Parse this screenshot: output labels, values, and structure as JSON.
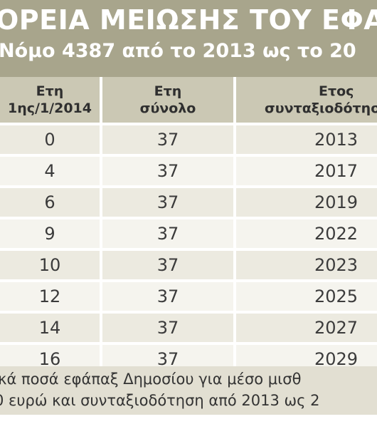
{
  "header": {
    "title": "ΟΡΕΙΑ ΜΕΙΩΣΗΣ ΤΟΥ ΕΦΑ",
    "subtitle": "Νόμο 4387 από το 2013 ως το 20"
  },
  "table": {
    "columns": [
      {
        "line1": "Ετη",
        "line2": "1ης/1/2014"
      },
      {
        "line1": "Ετη",
        "line2": "σύνολο"
      },
      {
        "line1": "Ετος",
        "line2": "συνταξιοδότησ"
      }
    ],
    "rows": [
      [
        "0",
        "37",
        "2013"
      ],
      [
        "4",
        "37",
        "2017"
      ],
      [
        "6",
        "37",
        "2019"
      ],
      [
        "9",
        "37",
        "2022"
      ],
      [
        "10",
        "37",
        "2023"
      ],
      [
        "12",
        "37",
        "2025"
      ],
      [
        "14",
        "37",
        "2027"
      ],
      [
        "16",
        "37",
        "2029"
      ]
    ]
  },
  "caption": {
    "line1": "ικά ποσά εφάπαξ Δημοσίου για μέσο μισθ",
    "line2": "0 ευρώ και συνταξιοδότηση από 2013 ως 2"
  },
  "colors": {
    "banner": "#a8a58c",
    "header_row": "#cbc8b4",
    "row_odd": "#eceae0",
    "row_even": "#f5f4ee",
    "caption_bg": "#e2dfd2"
  }
}
